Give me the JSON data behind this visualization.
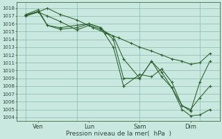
{
  "background_color": "#c8e8e0",
  "grid_color": "#88bbaa",
  "line_color": "#2a5e2a",
  "xlabel": "Pression niveau de la mer(  hPa  )",
  "ylim": [
    1003.5,
    1018.8
  ],
  "yticks": [
    1004,
    1005,
    1006,
    1007,
    1008,
    1009,
    1010,
    1011,
    1012,
    1013,
    1014,
    1015,
    1016,
    1017,
    1018
  ],
  "xlim": [
    0.0,
    4.0
  ],
  "xtick_positions": [
    0.42,
    1.42,
    2.42,
    3.42
  ],
  "xtick_labels": [
    "Ven",
    "Lun",
    "Sam",
    "Dim"
  ],
  "vline_positions": [
    0.18,
    1.18,
    2.42,
    3.6
  ],
  "lines": [
    {
      "x": [
        0.18,
        0.42,
        0.6,
        0.85,
        1.18,
        1.5,
        1.75,
        2.0,
        2.25,
        2.42,
        2.65,
        2.85,
        3.05,
        3.25,
        3.42,
        3.6,
        3.8
      ],
      "y": [
        1017.0,
        1017.5,
        1018.0,
        1017.2,
        1016.5,
        1015.5,
        1014.8,
        1014.2,
        1013.5,
        1013.0,
        1012.5,
        1012.0,
        1011.5,
        1011.2,
        1010.8,
        1011.0,
        1012.2
      ]
    },
    {
      "x": [
        0.18,
        0.42,
        0.6,
        0.85,
        1.18,
        1.42,
        1.65,
        1.9,
        2.1,
        2.42,
        2.65,
        2.85,
        3.05,
        3.25,
        3.42,
        3.6,
        3.8
      ],
      "y": [
        1017.1,
        1017.5,
        1017.0,
        1016.3,
        1015.2,
        1015.8,
        1015.3,
        1014.4,
        1011.5,
        1009.0,
        1011.2,
        1009.8,
        1007.8,
        1005.0,
        1004.2,
        1004.3,
        1005.0
      ]
    },
    {
      "x": [
        0.18,
        0.42,
        0.6,
        0.85,
        1.18,
        1.42,
        1.65,
        1.9,
        2.1,
        2.42,
        2.65,
        2.85,
        3.05,
        3.25,
        3.42,
        3.6,
        3.8
      ],
      "y": [
        1017.2,
        1017.8,
        1015.8,
        1015.3,
        1015.5,
        1016.0,
        1015.5,
        1014.0,
        1009.0,
        1009.0,
        1011.2,
        1009.2,
        1007.8,
        1005.5,
        1004.8,
        1008.5,
        1011.2
      ]
    },
    {
      "x": [
        0.18,
        0.42,
        0.6,
        0.85,
        1.18,
        1.42,
        1.65,
        1.9,
        2.1,
        2.42,
        2.65,
        2.85,
        3.05,
        3.25,
        3.42,
        3.6,
        3.8
      ],
      "y": [
        1017.1,
        1017.6,
        1015.8,
        1015.5,
        1015.8,
        1016.0,
        1015.5,
        1013.0,
        1008.0,
        1009.5,
        1009.2,
        1010.2,
        1008.5,
        1005.5,
        1005.0,
        1006.5,
        1008.0
      ]
    }
  ]
}
